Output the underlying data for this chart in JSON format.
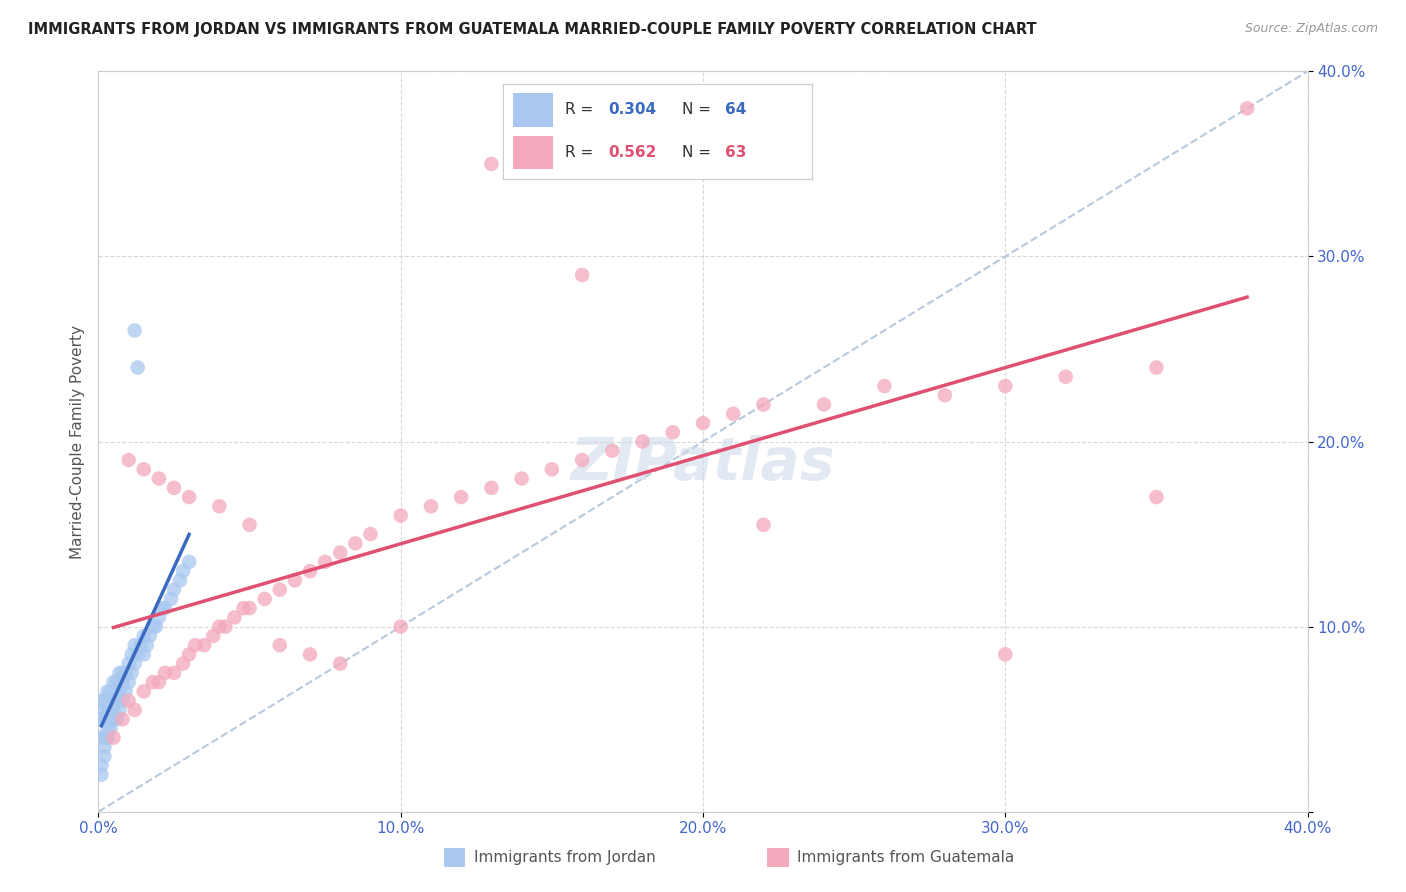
{
  "title": "IMMIGRANTS FROM JORDAN VS IMMIGRANTS FROM GUATEMALA MARRIED-COUPLE FAMILY POVERTY CORRELATION CHART",
  "source": "Source: ZipAtlas.com",
  "ylabel": "Married-Couple Family Poverty",
  "xlim": [
    0.0,
    0.4
  ],
  "ylim": [
    0.0,
    0.4
  ],
  "jordan_R": 0.304,
  "jordan_N": 64,
  "guatemala_R": 0.562,
  "guatemala_N": 63,
  "jordan_color": "#a8c8f0",
  "guatemala_color": "#f4a8bc",
  "jordan_line_color": "#3a6abf",
  "guatemala_line_color": "#e05070",
  "diagonal_color": "#b0c4d8",
  "background_color": "#ffffff",
  "grid_color": "#d0d0d0",
  "jordan_x": [
    0.001,
    0.001,
    0.001,
    0.002,
    0.002,
    0.002,
    0.002,
    0.003,
    0.003,
    0.003,
    0.003,
    0.004,
    0.004,
    0.004,
    0.005,
    0.005,
    0.005,
    0.006,
    0.006,
    0.006,
    0.007,
    0.007,
    0.007,
    0.008,
    0.008,
    0.008,
    0.009,
    0.009,
    0.01,
    0.01,
    0.011,
    0.011,
    0.012,
    0.012,
    0.013,
    0.014,
    0.015,
    0.015,
    0.016,
    0.017,
    0.018,
    0.019,
    0.02,
    0.021,
    0.022,
    0.024,
    0.025,
    0.027,
    0.028,
    0.03,
    0.001,
    0.001,
    0.002,
    0.002,
    0.003,
    0.003,
    0.004,
    0.005,
    0.006,
    0.007,
    0.008,
    0.009,
    0.012,
    0.013
  ],
  "jordan_y": [
    0.04,
    0.05,
    0.06,
    0.04,
    0.05,
    0.055,
    0.06,
    0.04,
    0.05,
    0.055,
    0.065,
    0.045,
    0.055,
    0.065,
    0.05,
    0.06,
    0.07,
    0.05,
    0.06,
    0.07,
    0.055,
    0.065,
    0.075,
    0.06,
    0.07,
    0.075,
    0.065,
    0.075,
    0.07,
    0.08,
    0.075,
    0.085,
    0.08,
    0.09,
    0.085,
    0.09,
    0.085,
    0.095,
    0.09,
    0.095,
    0.1,
    0.1,
    0.105,
    0.11,
    0.11,
    0.115,
    0.12,
    0.125,
    0.13,
    0.135,
    0.02,
    0.025,
    0.03,
    0.035,
    0.04,
    0.045,
    0.05,
    0.055,
    0.06,
    0.065,
    0.07,
    0.075,
    0.26,
    0.24
  ],
  "guatemala_x": [
    0.005,
    0.008,
    0.01,
    0.012,
    0.015,
    0.018,
    0.02,
    0.022,
    0.025,
    0.028,
    0.03,
    0.032,
    0.035,
    0.038,
    0.04,
    0.042,
    0.045,
    0.048,
    0.05,
    0.055,
    0.06,
    0.065,
    0.07,
    0.075,
    0.08,
    0.085,
    0.09,
    0.1,
    0.11,
    0.12,
    0.13,
    0.14,
    0.15,
    0.16,
    0.17,
    0.18,
    0.19,
    0.2,
    0.21,
    0.22,
    0.24,
    0.26,
    0.28,
    0.3,
    0.32,
    0.35,
    0.38,
    0.01,
    0.015,
    0.02,
    0.025,
    0.03,
    0.04,
    0.05,
    0.06,
    0.07,
    0.08,
    0.1,
    0.13,
    0.16,
    0.22,
    0.3,
    0.35
  ],
  "guatemala_y": [
    0.04,
    0.05,
    0.06,
    0.055,
    0.065,
    0.07,
    0.07,
    0.075,
    0.075,
    0.08,
    0.085,
    0.09,
    0.09,
    0.095,
    0.1,
    0.1,
    0.105,
    0.11,
    0.11,
    0.115,
    0.12,
    0.125,
    0.13,
    0.135,
    0.14,
    0.145,
    0.15,
    0.16,
    0.165,
    0.17,
    0.175,
    0.18,
    0.185,
    0.19,
    0.195,
    0.2,
    0.205,
    0.21,
    0.215,
    0.22,
    0.22,
    0.23,
    0.225,
    0.23,
    0.235,
    0.24,
    0.38,
    0.19,
    0.185,
    0.18,
    0.175,
    0.17,
    0.165,
    0.155,
    0.09,
    0.085,
    0.08,
    0.1,
    0.35,
    0.29,
    0.155,
    0.085,
    0.17
  ]
}
